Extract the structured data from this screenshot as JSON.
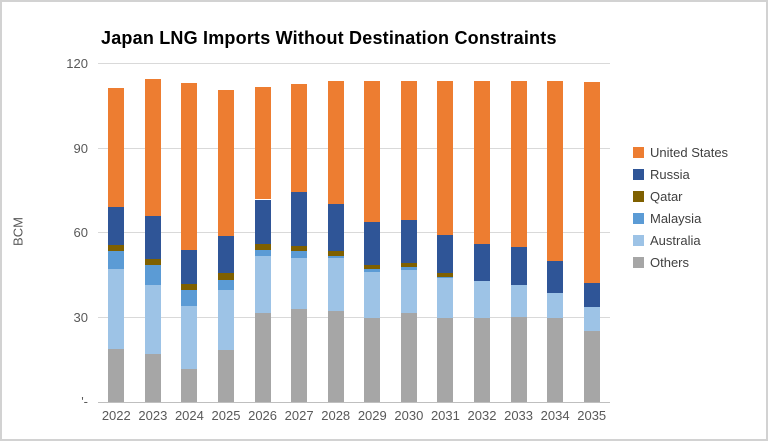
{
  "frame": {
    "background": "#ffffff",
    "border_color": "#d2d2d2"
  },
  "chart_data": {
    "type": "bar",
    "stacked": true,
    "title": "Japan LNG Imports Without Destination Constraints",
    "xlabel": "",
    "ylabel": "BCM",
    "ylim": [
      0,
      120
    ],
    "grid": true,
    "legend_position": "right",
    "gridline_color": "#d9d9d9",
    "axis_text_color": "#595959",
    "categories": [
      "2022",
      "2023",
      "2024",
      "2025",
      "2026",
      "2027",
      "2028",
      "2029",
      "2030",
      "2031",
      "2032",
      "2033",
      "2034",
      "2035"
    ],
    "y_ticks": [
      {
        "value": 0,
        "label": "'-"
      },
      {
        "value": 30,
        "label": "30"
      },
      {
        "value": 60,
        "label": "60"
      },
      {
        "value": 90,
        "label": "90"
      },
      {
        "value": 120,
        "label": "120"
      }
    ],
    "series": [
      {
        "name": "Others",
        "color": "#A6A6A6",
        "values": [
          18.8,
          17.0,
          11.6,
          18.6,
          31.7,
          33.2,
          32.3,
          29.7,
          31.5,
          29.7,
          29.9,
          30.3,
          29.9,
          25.2
        ]
      },
      {
        "name": "Australia",
        "color": "#9DC3E6",
        "values": [
          28.5,
          24.6,
          22.6,
          21.2,
          20.0,
          17.9,
          18.8,
          16.6,
          15.5,
          14.3,
          13.1,
          11.3,
          8.7,
          8.7
        ]
      },
      {
        "name": "Malaysia",
        "color": "#5B9BD5",
        "values": [
          6.4,
          6.9,
          5.6,
          3.6,
          2.3,
          2.4,
          0.9,
          1.0,
          1.1,
          0.5,
          0,
          0,
          0,
          0
        ]
      },
      {
        "name": "Qatar",
        "color": "#7F6000",
        "values": [
          2.1,
          2.3,
          2.0,
          2.3,
          2.1,
          2.0,
          1.5,
          1.2,
          1.3,
          1.2,
          0,
          0,
          0,
          0
        ]
      },
      {
        "name": "Russia",
        "color": "#2F5597",
        "values": [
          13.4,
          15.1,
          12.3,
          13.1,
          15.8,
          19.1,
          16.8,
          15.4,
          15.3,
          13.7,
          13.1,
          13.6,
          11.5,
          8.3
        ]
      },
      {
        "name": "United States",
        "color": "#ED7D31",
        "values": [
          42.2,
          48.7,
          59.0,
          51.9,
          40.0,
          38.3,
          43.5,
          49.9,
          49.1,
          54.4,
          57.7,
          58.6,
          63.7,
          71.3
        ]
      }
    ],
    "totals": [
      111.4,
      114.6,
      113.1,
      110.7,
      111.9,
      112.9,
      113.8,
      113.8,
      113.8,
      113.8,
      113.8,
      113.8,
      113.8,
      113.5
    ],
    "legend_order": [
      "United States",
      "Russia",
      "Qatar",
      "Malaysia",
      "Australia",
      "Others"
    ]
  }
}
